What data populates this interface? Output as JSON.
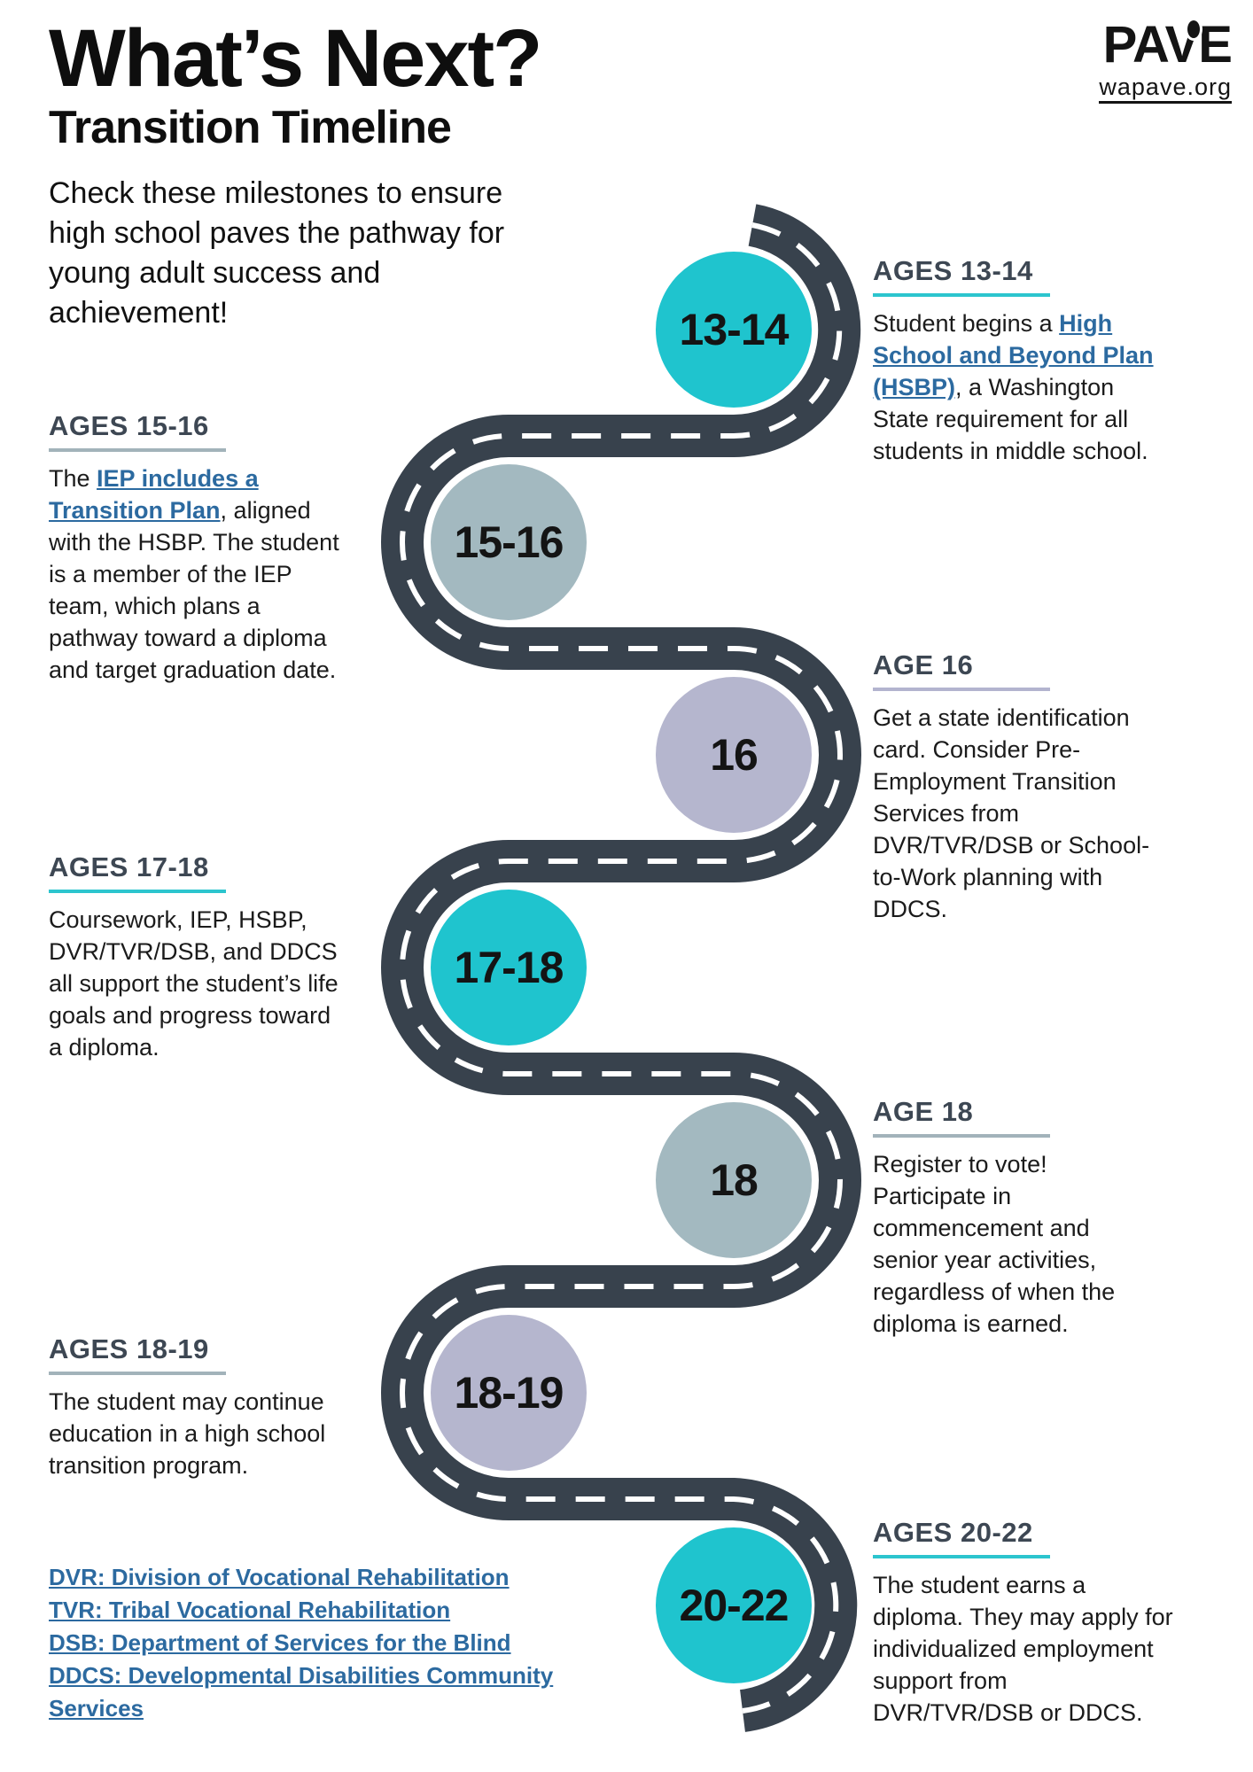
{
  "page": {
    "title": "What’s Next?",
    "subtitle": "Transition Timeline",
    "intro": "Check these milestones to ensure high school paves the pathway for young adult success and achievement!"
  },
  "logo": {
    "name": "PAVE",
    "site": "wapave.org"
  },
  "colors": {
    "road": "#38424d",
    "road_dash": "#ffffff",
    "teal": "#1fc4ce",
    "gray_blue": "#a3b9c0",
    "lavender": "#b5b6ce",
    "heading_text": "#3d4753",
    "body_text": "#1b1b1b",
    "link_blue": "#2c6aa0",
    "accent_teal": "#2cc5ce",
    "accent_gray": "#a2b3ba",
    "accent_lavender": "#b3b4cf"
  },
  "sections": [
    {
      "id": "ages-13-14",
      "heading": "AGES 13-14",
      "circle_label": "13-14",
      "circle_color": "teal",
      "body": [
        {
          "t": "Student begins a "
        },
        {
          "t": "High School and Beyond Plan (HSBP)",
          "link": true
        },
        {
          "t": ", a Washington State requirement for all students in middle school."
        }
      ]
    },
    {
      "id": "ages-15-16",
      "heading": "AGES 15-16",
      "circle_label": "15-16",
      "circle_color": "gray_blue",
      "body": [
        {
          "t": "The "
        },
        {
          "t": "IEP includes a Transition Plan",
          "link": true
        },
        {
          "t": ", aligned with the HSBP. The student is a member of the IEP team, which plans a pathway toward a diploma and target graduation date."
        }
      ]
    },
    {
      "id": "age-16",
      "heading": "AGE 16",
      "circle_label": "16",
      "circle_color": "lavender",
      "body": [
        {
          "t": "Get a state identification card. Consider Pre-Employment Transition Services from DVR/TVR/DSB or School-to-Work planning with DDCS."
        }
      ]
    },
    {
      "id": "ages-17-18",
      "heading": "AGES 17-18",
      "circle_label": "17-18",
      "circle_color": "teal",
      "body": [
        {
          "t": "Coursework, IEP, HSBP, DVR/TVR/DSB, and DDCS all support the student’s life goals and progress toward a diploma."
        }
      ]
    },
    {
      "id": "age-18",
      "heading": "AGE 18",
      "circle_label": "18",
      "circle_color": "gray_blue",
      "body": [
        {
          "t": "Register to vote! Participate in commencement and senior year activities, regardless of when the diploma is earned."
        }
      ]
    },
    {
      "id": "ages-18-19",
      "heading": "AGES 18-19",
      "circle_label": "18-19",
      "circle_color": "lavender",
      "body": [
        {
          "t": "The student may continue education in a high school transition program."
        }
      ]
    },
    {
      "id": "ages-20-22",
      "heading": "AGES 20-22",
      "circle_label": "20-22",
      "circle_color": "teal",
      "body": [
        {
          "t": "The student earns a diploma. They may apply for individualized employment support from DVR/TVR/DSB or DDCS."
        }
      ]
    }
  ],
  "footer": {
    "links": [
      "DVR: Division of Vocational Rehabilitation",
      "TVR: Tribal Vocational Rehabilitation",
      "DSB: Department of Services for the Blind",
      "DDCS: Developmental Disabilities Community Services"
    ]
  }
}
